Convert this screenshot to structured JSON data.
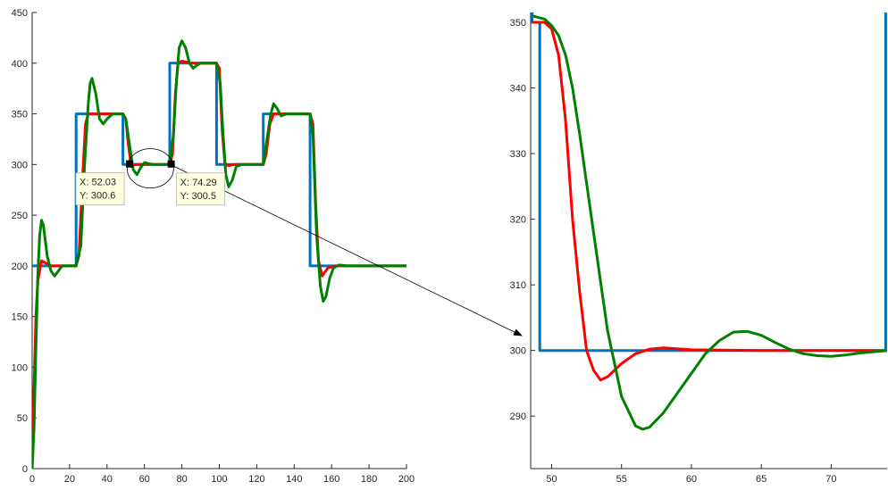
{
  "colors": {
    "setpoint": "#0072BD",
    "response_red": "#FF0000",
    "response_green": "#008000",
    "axes": "#262626",
    "tooltip_bg": "#FFFFE1",
    "tooltip_border": "#B0B0A0"
  },
  "chart_data": [
    {
      "type": "line",
      "xlim": [
        0,
        200
      ],
      "ylim": [
        0,
        450
      ],
      "x_ticks": [
        "0",
        "20",
        "40",
        "60",
        "80",
        "100",
        "120",
        "140",
        "160",
        "180",
        "200"
      ],
      "y_ticks": [
        "0",
        "50",
        "100",
        "150",
        "200",
        "250",
        "300",
        "350",
        "400",
        "450"
      ],
      "grid": false,
      "series": [
        {
          "color": "#0072BD",
          "points": [
            [
              0,
              200
            ],
            [
              23.5,
              200
            ],
            [
              23.5,
              350
            ],
            [
              48.5,
              350
            ],
            [
              48.5,
              300
            ],
            [
              73.5,
              300
            ],
            [
              73.5,
              400
            ],
            [
              98.5,
              400
            ],
            [
              98.5,
              300
            ],
            [
              123.5,
              300
            ],
            [
              123.5,
              350
            ],
            [
              148.5,
              350
            ],
            [
              148.5,
              200
            ],
            [
              200,
              200
            ]
          ]
        },
        {
          "color": "#FF0000",
          "points": [
            [
              0,
              0
            ],
            [
              1,
              80
            ],
            [
              2,
              150
            ],
            [
              3,
              185
            ],
            [
              5,
              205
            ],
            [
              7,
              203
            ],
            [
              10,
              200
            ],
            [
              23.5,
              200
            ],
            [
              25,
              210
            ],
            [
              27,
              290
            ],
            [
              28.5,
              340
            ],
            [
              30,
              350
            ],
            [
              35,
              350
            ],
            [
              48.5,
              350
            ],
            [
              50,
              345
            ],
            [
              51.5,
              318
            ],
            [
              53,
              298
            ],
            [
              55,
              300
            ],
            [
              58,
              300
            ],
            [
              73.5,
              300
            ],
            [
              75,
              310
            ],
            [
              76.5,
              370
            ],
            [
              78,
              400
            ],
            [
              80,
              402
            ],
            [
              85,
              400
            ],
            [
              98.5,
              400
            ],
            [
              100,
              395
            ],
            [
              101.5,
              335
            ],
            [
              103,
              300
            ],
            [
              105,
              299
            ],
            [
              108,
              300
            ],
            [
              123.5,
              300
            ],
            [
              125,
              310
            ],
            [
              127,
              340
            ],
            [
              129,
              350
            ],
            [
              148.5,
              350
            ],
            [
              150,
              340
            ],
            [
              151.5,
              260
            ],
            [
              153,
              205
            ],
            [
              155,
              190
            ],
            [
              158,
              198
            ],
            [
              162,
              200
            ],
            [
              200,
              200
            ]
          ]
        },
        {
          "color": "#008000",
          "points": [
            [
              0,
              0
            ],
            [
              1,
              40
            ],
            [
              2,
              120
            ],
            [
              3,
              190
            ],
            [
              4,
              230
            ],
            [
              5,
              245
            ],
            [
              6,
              240
            ],
            [
              8,
              210
            ],
            [
              10,
              195
            ],
            [
              12,
              190
            ],
            [
              14,
              195
            ],
            [
              16,
              200
            ],
            [
              23.5,
              200
            ],
            [
              26,
              220
            ],
            [
              28,
              300
            ],
            [
              30,
              360
            ],
            [
              31,
              380
            ],
            [
              32,
              385
            ],
            [
              34,
              370
            ],
            [
              36,
              345
            ],
            [
              38,
              340
            ],
            [
              40,
              345
            ],
            [
              43,
              350
            ],
            [
              48.5,
              350
            ],
            [
              50,
              345
            ],
            [
              52,
              320
            ],
            [
              54,
              295
            ],
            [
              56,
              290
            ],
            [
              58,
              297
            ],
            [
              60,
              302
            ],
            [
              62,
              301
            ],
            [
              65,
              300
            ],
            [
              73.5,
              300
            ],
            [
              75.5,
              330
            ],
            [
              77,
              380
            ],
            [
              78.5,
              415
            ],
            [
              80,
              422
            ],
            [
              82,
              415
            ],
            [
              84,
              400
            ],
            [
              86,
              395
            ],
            [
              88,
              398
            ],
            [
              90,
              400
            ],
            [
              98.5,
              400
            ],
            [
              100.5,
              380
            ],
            [
              102,
              330
            ],
            [
              103.5,
              290
            ],
            [
              105,
              278
            ],
            [
              107,
              285
            ],
            [
              109,
              298
            ],
            [
              112,
              300
            ],
            [
              123.5,
              300
            ],
            [
              125.5,
              325
            ],
            [
              127.5,
              350
            ],
            [
              129,
              360
            ],
            [
              131,
              355
            ],
            [
              133,
              348
            ],
            [
              136,
              350
            ],
            [
              148.5,
              350
            ],
            [
              150,
              330
            ],
            [
              152,
              230
            ],
            [
              154,
              180
            ],
            [
              155.5,
              165
            ],
            [
              157,
              170
            ],
            [
              159,
              188
            ],
            [
              161,
              198
            ],
            [
              164,
              201
            ],
            [
              168,
              200
            ],
            [
              200,
              200
            ]
          ]
        }
      ],
      "datatips": [
        {
          "x": "X: 52.03",
          "y": "Y: 300.6"
        },
        {
          "x": "X: 74.29",
          "y": "Y: 300.5"
        }
      ]
    },
    {
      "type": "line",
      "xlim": [
        48.5,
        74
      ],
      "ylim": [
        282,
        351.5
      ],
      "x_ticks": [
        "50",
        "55",
        "60",
        "65",
        "70"
      ],
      "y_ticks": [
        "290",
        "300",
        "310",
        "320",
        "330",
        "340",
        "350"
      ],
      "grid": false,
      "series": [
        {
          "color": "#0072BD",
          "points": [
            [
              48.6,
              351.5
            ],
            [
              48.6,
              350
            ],
            [
              49.15,
              350
            ],
            [
              49.15,
              300
            ],
            [
              73.9,
              300
            ],
            [
              73.9,
              351.5
            ]
          ]
        },
        {
          "color": "#FF0000",
          "points": [
            [
              48.6,
              350
            ],
            [
              49.5,
              350
            ],
            [
              50,
              349
            ],
            [
              50.5,
              345
            ],
            [
              51,
              335
            ],
            [
              51.5,
              320
            ],
            [
              52,
              309
            ],
            [
              52.5,
              300
            ],
            [
              53,
              297
            ],
            [
              53.5,
              295.5
            ],
            [
              54,
              296
            ],
            [
              55,
              298
            ],
            [
              56,
              299.5
            ],
            [
              57,
              300.2
            ],
            [
              58,
              300.4
            ],
            [
              60,
              300.1
            ],
            [
              65,
              300
            ],
            [
              74,
              300
            ]
          ]
        },
        {
          "color": "#008000",
          "points": [
            [
              48.6,
              351
            ],
            [
              49.5,
              350.5
            ],
            [
              50,
              349.5
            ],
            [
              50.5,
              348
            ],
            [
              51,
              345
            ],
            [
              51.5,
              340
            ],
            [
              52,
              333
            ],
            [
              53,
              318
            ],
            [
              54,
              303
            ],
            [
              55,
              293
            ],
            [
              56,
              288.5
            ],
            [
              56.5,
              288
            ],
            [
              57,
              288.3
            ],
            [
              58,
              290.5
            ],
            [
              59,
              293.5
            ],
            [
              60,
              296.5
            ],
            [
              61,
              299.5
            ],
            [
              62,
              301.5
            ],
            [
              63,
              302.8
            ],
            [
              64,
              302.9
            ],
            [
              65,
              302.3
            ],
            [
              66,
              301.2
            ],
            [
              67,
              300.2
            ],
            [
              68,
              299.5
            ],
            [
              69,
              299.2
            ],
            [
              70,
              299.1
            ],
            [
              71,
              299.3
            ],
            [
              72,
              299.6
            ],
            [
              73,
              299.8
            ],
            [
              74,
              300
            ]
          ]
        }
      ]
    }
  ]
}
